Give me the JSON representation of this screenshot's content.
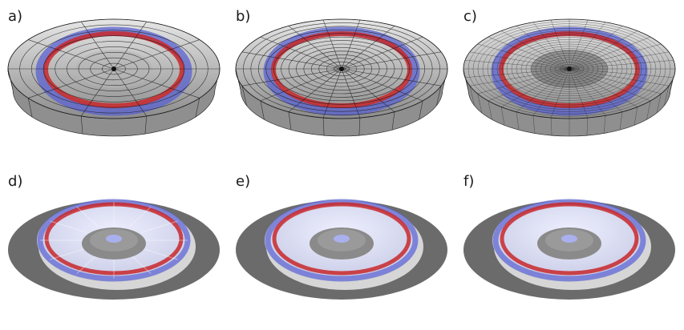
{
  "figure": {
    "panels": [
      {
        "label": "a)",
        "style": "mesh",
        "mesh_density": "coarse"
      },
      {
        "label": "b)",
        "style": "mesh",
        "mesh_density": "medium"
      },
      {
        "label": "c)",
        "style": "mesh",
        "mesh_density": "fine"
      },
      {
        "label": "d)",
        "style": "shaded",
        "mesh_density": "coarse"
      },
      {
        "label": "e)",
        "style": "shaded",
        "mesh_density": "medium"
      },
      {
        "label": "f)",
        "style": "shaded",
        "mesh_density": "fine"
      }
    ],
    "colors": {
      "red_ring": "#c8282a",
      "blue_ring": "#5a62d0",
      "mesh_gray": "#9a9a9a",
      "mesh_line": "#1c1c1c",
      "shaded_base": "#6b6b6b",
      "shaded_surface": "#c9cbe6",
      "hub_gray": "#8a8a8a"
    }
  }
}
